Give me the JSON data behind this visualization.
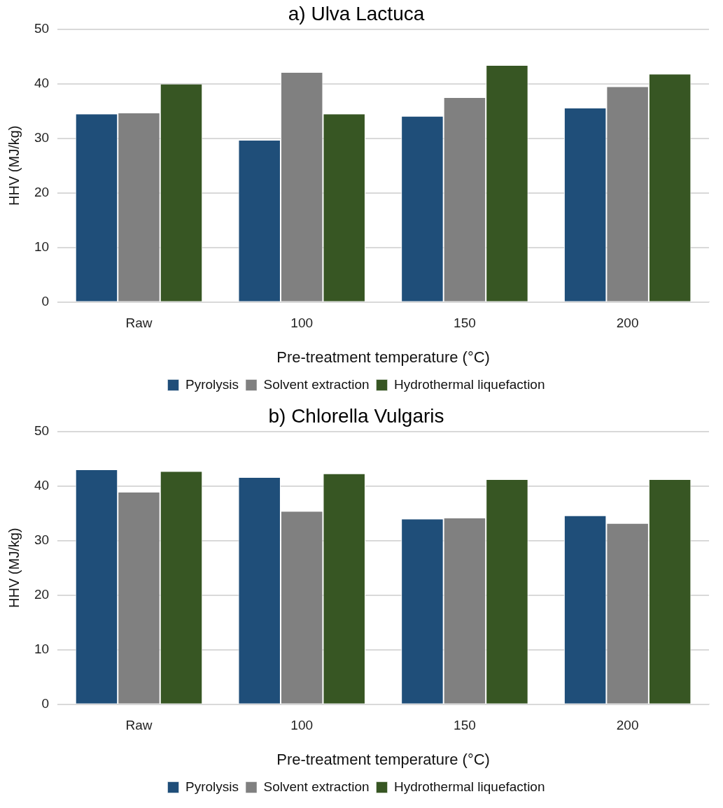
{
  "chart_data": [
    {
      "type": "bar",
      "title": "a) Ulva Lactuca",
      "xlabel": "Pre-treatment temperature (°C)",
      "ylabel": "HHV (MJ/kg)",
      "categories": [
        "Raw",
        "100",
        "150",
        "200"
      ],
      "series": [
        {
          "name": "Pyrolysis",
          "color": "#1f4e79",
          "values": [
            34.4,
            29.6,
            34.0,
            35.5
          ]
        },
        {
          "name": "Solvent extraction",
          "color": "#808080",
          "values": [
            34.6,
            42.0,
            37.4,
            39.4
          ]
        },
        {
          "name": "Hydrothermal liquefaction",
          "color": "#375623",
          "values": [
            39.9,
            34.4,
            43.3,
            41.7
          ]
        }
      ],
      "ylim": [
        0,
        50
      ],
      "yticks": [
        0,
        10,
        20,
        30,
        40,
        50
      ],
      "grid": "y",
      "legend": "bottom"
    },
    {
      "type": "bar",
      "title": "b) Chlorella Vulgaris",
      "xlabel": "Pre-treatment temperature (°C)",
      "ylabel": "HHV (MJ/kg)",
      "categories": [
        "Raw",
        "100",
        "150",
        "200"
      ],
      "series": [
        {
          "name": "Pyrolysis",
          "color": "#1f4e79",
          "values": [
            42.9,
            41.5,
            33.9,
            34.5
          ]
        },
        {
          "name": "Solvent extraction",
          "color": "#808080",
          "values": [
            38.8,
            35.3,
            34.1,
            33.1
          ]
        },
        {
          "name": "Hydrothermal liquefaction",
          "color": "#375623",
          "values": [
            42.6,
            42.2,
            41.1,
            41.1
          ]
        }
      ],
      "ylim": [
        0,
        50
      ],
      "yticks": [
        0,
        10,
        20,
        30,
        40,
        50
      ],
      "grid": "y",
      "legend": "bottom"
    }
  ]
}
